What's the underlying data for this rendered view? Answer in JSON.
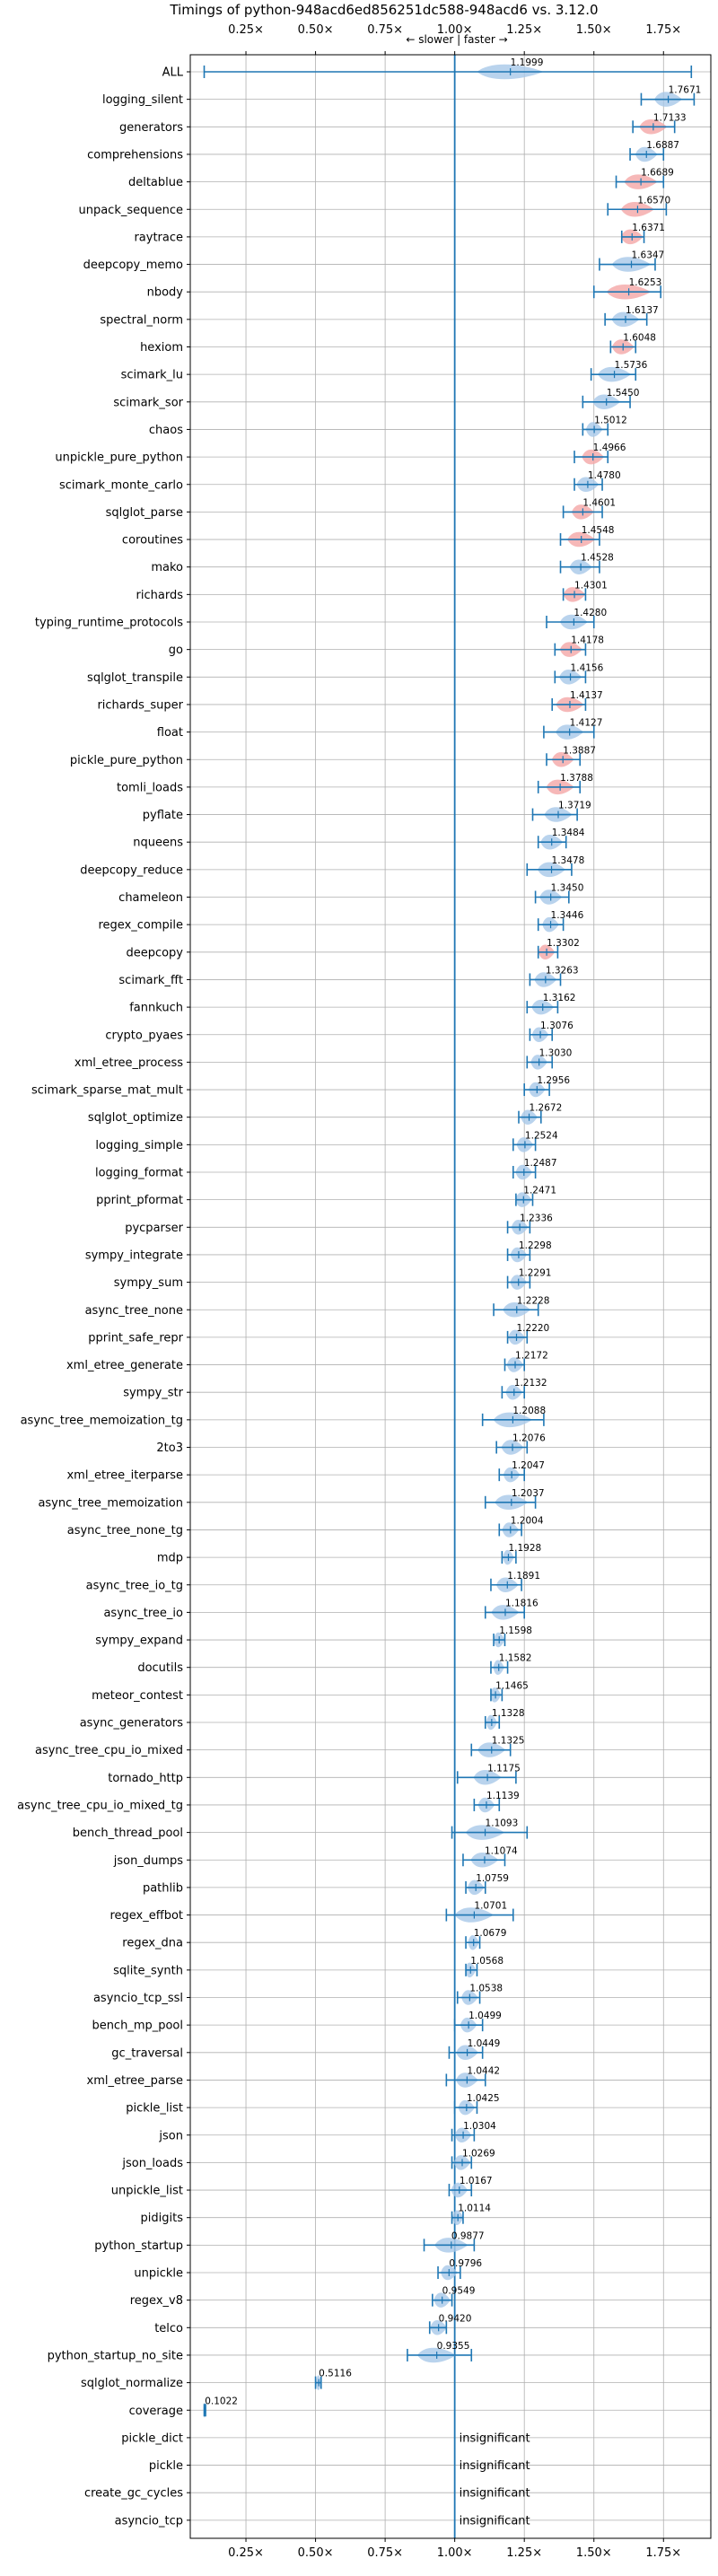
{
  "chart_data": {
    "type": "violin",
    "title": "Timings of python-948acd6ed856251dc588-948acd6 vs. 3.12.0",
    "direction_label": "← slower | faster →",
    "insignificant_label": "insignificant",
    "xlim": [
      0.05,
      1.92
    ],
    "xticks": [
      0.25,
      0.5,
      0.75,
      1.0,
      1.25,
      1.5,
      1.75
    ],
    "xtick_labels": [
      "0.25×",
      "0.50×",
      "0.75×",
      "1.00×",
      "1.25×",
      "1.50×",
      "1.75×"
    ],
    "reference_x": 1.0,
    "grid": true,
    "colors": {
      "faster_violin": "#a8c8e8",
      "significant_violin": "#f4a6a6",
      "whisker": "#1f77b4",
      "reference": "#1f77b4"
    },
    "benchmarks": [
      {
        "name": "ALL",
        "value": 1.1999,
        "label": "1.1999",
        "low": 0.1,
        "high": 1.85,
        "spread": 0.12,
        "highlight": false
      },
      {
        "name": "logging_silent",
        "value": 1.7671,
        "label": "1.7671",
        "low": 1.67,
        "high": 1.86,
        "spread": 0.05,
        "highlight": false
      },
      {
        "name": "generators",
        "value": 1.7133,
        "label": "1.7133",
        "low": 1.64,
        "high": 1.79,
        "spread": 0.05,
        "highlight": true
      },
      {
        "name": "comprehensions",
        "value": 1.6887,
        "label": "1.6887",
        "low": 1.63,
        "high": 1.75,
        "spread": 0.04,
        "highlight": false
      },
      {
        "name": "deltablue",
        "value": 1.6689,
        "label": "1.6689",
        "low": 1.58,
        "high": 1.75,
        "spread": 0.06,
        "highlight": true
      },
      {
        "name": "unpack_sequence",
        "value": 1.657,
        "label": "1.6570",
        "low": 1.55,
        "high": 1.76,
        "spread": 0.06,
        "highlight": true
      },
      {
        "name": "raytrace",
        "value": 1.6371,
        "label": "1.6371",
        "low": 1.6,
        "high": 1.68,
        "spread": 0.04,
        "highlight": true
      },
      {
        "name": "deepcopy_memo",
        "value": 1.6347,
        "label": "1.6347",
        "low": 1.52,
        "high": 1.72,
        "spread": 0.07,
        "highlight": false
      },
      {
        "name": "nbody",
        "value": 1.6253,
        "label": "1.6253",
        "low": 1.5,
        "high": 1.74,
        "spread": 0.08,
        "highlight": true
      },
      {
        "name": "spectral_norm",
        "value": 1.6137,
        "label": "1.6137",
        "low": 1.54,
        "high": 1.69,
        "spread": 0.05,
        "highlight": false
      },
      {
        "name": "hexiom",
        "value": 1.6048,
        "label": "1.6048",
        "low": 1.56,
        "high": 1.65,
        "spread": 0.04,
        "highlight": true
      },
      {
        "name": "scimark_lu",
        "value": 1.5736,
        "label": "1.5736",
        "low": 1.49,
        "high": 1.65,
        "spread": 0.06,
        "highlight": false
      },
      {
        "name": "scimark_sor",
        "value": 1.545,
        "label": "1.5450",
        "low": 1.46,
        "high": 1.63,
        "spread": 0.05,
        "highlight": false
      },
      {
        "name": "chaos",
        "value": 1.5012,
        "label": "1.5012",
        "low": 1.46,
        "high": 1.55,
        "spread": 0.03,
        "highlight": false
      },
      {
        "name": "unpickle_pure_python",
        "value": 1.4966,
        "label": "1.4966",
        "low": 1.43,
        "high": 1.55,
        "spread": 0.04,
        "highlight": true
      },
      {
        "name": "scimark_monte_carlo",
        "value": 1.478,
        "label": "1.4780",
        "low": 1.43,
        "high": 1.53,
        "spread": 0.04,
        "highlight": false
      },
      {
        "name": "sqlglot_parse",
        "value": 1.4601,
        "label": "1.4601",
        "low": 1.39,
        "high": 1.53,
        "spread": 0.04,
        "highlight": true
      },
      {
        "name": "coroutines",
        "value": 1.4548,
        "label": "1.4548",
        "low": 1.38,
        "high": 1.52,
        "spread": 0.05,
        "highlight": true
      },
      {
        "name": "mako",
        "value": 1.4528,
        "label": "1.4528",
        "low": 1.38,
        "high": 1.52,
        "spread": 0.04,
        "highlight": false
      },
      {
        "name": "richards",
        "value": 1.4301,
        "label": "1.4301",
        "low": 1.39,
        "high": 1.47,
        "spread": 0.04,
        "highlight": true
      },
      {
        "name": "typing_runtime_protocols",
        "value": 1.428,
        "label": "1.4280",
        "low": 1.33,
        "high": 1.5,
        "spread": 0.05,
        "highlight": false
      },
      {
        "name": "go",
        "value": 1.4178,
        "label": "1.4178",
        "low": 1.36,
        "high": 1.47,
        "spread": 0.04,
        "highlight": true
      },
      {
        "name": "sqlglot_transpile",
        "value": 1.4156,
        "label": "1.4156",
        "low": 1.36,
        "high": 1.47,
        "spread": 0.04,
        "highlight": false
      },
      {
        "name": "richards_super",
        "value": 1.4137,
        "label": "1.4137",
        "low": 1.35,
        "high": 1.47,
        "spread": 0.05,
        "highlight": true
      },
      {
        "name": "float",
        "value": 1.4127,
        "label": "1.4127",
        "low": 1.32,
        "high": 1.5,
        "spread": 0.05,
        "highlight": false
      },
      {
        "name": "pickle_pure_python",
        "value": 1.3887,
        "label": "1.3887",
        "low": 1.33,
        "high": 1.45,
        "spread": 0.04,
        "highlight": true
      },
      {
        "name": "tomli_loads",
        "value": 1.3788,
        "label": "1.3788",
        "low": 1.3,
        "high": 1.45,
        "spread": 0.05,
        "highlight": true
      },
      {
        "name": "pyflate",
        "value": 1.3719,
        "label": "1.3719",
        "low": 1.28,
        "high": 1.44,
        "spread": 0.05,
        "highlight": false
      },
      {
        "name": "nqueens",
        "value": 1.3484,
        "label": "1.3484",
        "low": 1.3,
        "high": 1.4,
        "spread": 0.04,
        "highlight": false
      },
      {
        "name": "deepcopy_reduce",
        "value": 1.3478,
        "label": "1.3478",
        "low": 1.26,
        "high": 1.42,
        "spread": 0.05,
        "highlight": false
      },
      {
        "name": "chameleon",
        "value": 1.345,
        "label": "1.3450",
        "low": 1.29,
        "high": 1.41,
        "spread": 0.04,
        "highlight": false
      },
      {
        "name": "regex_compile",
        "value": 1.3446,
        "label": "1.3446",
        "low": 1.3,
        "high": 1.39,
        "spread": 0.03,
        "highlight": false
      },
      {
        "name": "deepcopy",
        "value": 1.3302,
        "label": "1.3302",
        "low": 1.3,
        "high": 1.37,
        "spread": 0.03,
        "highlight": true
      },
      {
        "name": "scimark_fft",
        "value": 1.3263,
        "label": "1.3263",
        "low": 1.27,
        "high": 1.38,
        "spread": 0.04,
        "highlight": false
      },
      {
        "name": "fannkuch",
        "value": 1.3162,
        "label": "1.3162",
        "low": 1.26,
        "high": 1.37,
        "spread": 0.04,
        "highlight": false
      },
      {
        "name": "crypto_pyaes",
        "value": 1.3076,
        "label": "1.3076",
        "low": 1.27,
        "high": 1.35,
        "spread": 0.03,
        "highlight": false
      },
      {
        "name": "xml_etree_process",
        "value": 1.303,
        "label": "1.3030",
        "low": 1.26,
        "high": 1.35,
        "spread": 0.03,
        "highlight": false
      },
      {
        "name": "scimark_sparse_mat_mult",
        "value": 1.2956,
        "label": "1.2956",
        "low": 1.25,
        "high": 1.34,
        "spread": 0.03,
        "highlight": false
      },
      {
        "name": "sqlglot_optimize",
        "value": 1.2672,
        "label": "1.2672",
        "low": 1.23,
        "high": 1.31,
        "spread": 0.03,
        "highlight": false
      },
      {
        "name": "logging_simple",
        "value": 1.2524,
        "label": "1.2524",
        "low": 1.21,
        "high": 1.29,
        "spread": 0.03,
        "highlight": false
      },
      {
        "name": "logging_format",
        "value": 1.2487,
        "label": "1.2487",
        "low": 1.21,
        "high": 1.29,
        "spread": 0.03,
        "highlight": false
      },
      {
        "name": "pprint_pformat",
        "value": 1.2471,
        "label": "1.2471",
        "low": 1.22,
        "high": 1.28,
        "spread": 0.03,
        "highlight": false
      },
      {
        "name": "pycparser",
        "value": 1.2336,
        "label": "1.2336",
        "low": 1.19,
        "high": 1.27,
        "spread": 0.03,
        "highlight": false
      },
      {
        "name": "sympy_integrate",
        "value": 1.2298,
        "label": "1.2298",
        "low": 1.19,
        "high": 1.27,
        "spread": 0.03,
        "highlight": false
      },
      {
        "name": "sympy_sum",
        "value": 1.2291,
        "label": "1.2291",
        "low": 1.19,
        "high": 1.27,
        "spread": 0.03,
        "highlight": false
      },
      {
        "name": "async_tree_none",
        "value": 1.2228,
        "label": "1.2228",
        "low": 1.14,
        "high": 1.3,
        "spread": 0.05,
        "highlight": false
      },
      {
        "name": "pprint_safe_repr",
        "value": 1.222,
        "label": "1.2220",
        "low": 1.19,
        "high": 1.26,
        "spread": 0.03,
        "highlight": false
      },
      {
        "name": "xml_etree_generate",
        "value": 1.2172,
        "label": "1.2172",
        "low": 1.18,
        "high": 1.25,
        "spread": 0.03,
        "highlight": false
      },
      {
        "name": "sympy_str",
        "value": 1.2132,
        "label": "1.2132",
        "low": 1.17,
        "high": 1.25,
        "spread": 0.03,
        "highlight": false
      },
      {
        "name": "async_tree_memoization_tg",
        "value": 1.2088,
        "label": "1.2088",
        "low": 1.1,
        "high": 1.32,
        "spread": 0.07,
        "highlight": false
      },
      {
        "name": "2to3",
        "value": 1.2076,
        "label": "1.2076",
        "low": 1.15,
        "high": 1.26,
        "spread": 0.04,
        "highlight": false
      },
      {
        "name": "xml_etree_iterparse",
        "value": 1.2047,
        "label": "1.2047",
        "low": 1.16,
        "high": 1.25,
        "spread": 0.03,
        "highlight": false
      },
      {
        "name": "async_tree_memoization",
        "value": 1.2037,
        "label": "1.2037",
        "low": 1.11,
        "high": 1.29,
        "spread": 0.06,
        "highlight": false
      },
      {
        "name": "async_tree_none_tg",
        "value": 1.2004,
        "label": "1.2004",
        "low": 1.16,
        "high": 1.24,
        "spread": 0.03,
        "highlight": false
      },
      {
        "name": "mdp",
        "value": 1.1928,
        "label": "1.1928",
        "low": 1.17,
        "high": 1.22,
        "spread": 0.02,
        "highlight": false
      },
      {
        "name": "async_tree_io_tg",
        "value": 1.1891,
        "label": "1.1891",
        "low": 1.13,
        "high": 1.24,
        "spread": 0.04,
        "highlight": false
      },
      {
        "name": "async_tree_io",
        "value": 1.1816,
        "label": "1.1816",
        "low": 1.11,
        "high": 1.25,
        "spread": 0.05,
        "highlight": false
      },
      {
        "name": "sympy_expand",
        "value": 1.1598,
        "label": "1.1598",
        "low": 1.14,
        "high": 1.18,
        "spread": 0.02,
        "highlight": false
      },
      {
        "name": "docutils",
        "value": 1.1582,
        "label": "1.1582",
        "low": 1.13,
        "high": 1.19,
        "spread": 0.02,
        "highlight": false
      },
      {
        "name": "meteor_contest",
        "value": 1.1465,
        "label": "1.1465",
        "low": 1.13,
        "high": 1.17,
        "spread": 0.02,
        "highlight": false
      },
      {
        "name": "async_generators",
        "value": 1.1328,
        "label": "1.1328",
        "low": 1.11,
        "high": 1.16,
        "spread": 0.02,
        "highlight": false
      },
      {
        "name": "async_tree_cpu_io_mixed",
        "value": 1.1325,
        "label": "1.1325",
        "low": 1.06,
        "high": 1.2,
        "spread": 0.05,
        "highlight": false
      },
      {
        "name": "tornado_http",
        "value": 1.1175,
        "label": "1.1175",
        "low": 1.01,
        "high": 1.22,
        "spread": 0.05,
        "highlight": false
      },
      {
        "name": "async_tree_cpu_io_mixed_tg",
        "value": 1.1139,
        "label": "1.1139",
        "low": 1.07,
        "high": 1.16,
        "spread": 0.03,
        "highlight": false
      },
      {
        "name": "bench_thread_pool",
        "value": 1.1093,
        "label": "1.1093",
        "low": 0.99,
        "high": 1.26,
        "spread": 0.07,
        "highlight": false
      },
      {
        "name": "json_dumps",
        "value": 1.1074,
        "label": "1.1074",
        "low": 1.03,
        "high": 1.18,
        "spread": 0.05,
        "highlight": false
      },
      {
        "name": "pathlib",
        "value": 1.0759,
        "label": "1.0759",
        "low": 1.04,
        "high": 1.11,
        "spread": 0.03,
        "highlight": false
      },
      {
        "name": "regex_effbot",
        "value": 1.0701,
        "label": "1.0701",
        "low": 0.97,
        "high": 1.21,
        "spread": 0.07,
        "highlight": false
      },
      {
        "name": "regex_dna",
        "value": 1.0679,
        "label": "1.0679",
        "low": 1.04,
        "high": 1.09,
        "spread": 0.02,
        "highlight": false
      },
      {
        "name": "sqlite_synth",
        "value": 1.0568,
        "label": "1.0568",
        "low": 1.04,
        "high": 1.08,
        "spread": 0.02,
        "highlight": false
      },
      {
        "name": "asyncio_tcp_ssl",
        "value": 1.0538,
        "label": "1.0538",
        "low": 1.01,
        "high": 1.09,
        "spread": 0.03,
        "highlight": false
      },
      {
        "name": "bench_mp_pool",
        "value": 1.0499,
        "label": "1.0499",
        "low": 1.0,
        "high": 1.1,
        "spread": 0.03,
        "highlight": false
      },
      {
        "name": "gc_traversal",
        "value": 1.0449,
        "label": "1.0449",
        "low": 0.98,
        "high": 1.1,
        "spread": 0.04,
        "highlight": false
      },
      {
        "name": "xml_etree_parse",
        "value": 1.0442,
        "label": "1.0442",
        "low": 0.97,
        "high": 1.11,
        "spread": 0.04,
        "highlight": false
      },
      {
        "name": "pickle_list",
        "value": 1.0425,
        "label": "1.0425",
        "low": 1.0,
        "high": 1.08,
        "spread": 0.03,
        "highlight": false
      },
      {
        "name": "json",
        "value": 1.0304,
        "label": "1.0304",
        "low": 0.99,
        "high": 1.07,
        "spread": 0.03,
        "highlight": false
      },
      {
        "name": "json_loads",
        "value": 1.0269,
        "label": "1.0269",
        "low": 0.99,
        "high": 1.06,
        "spread": 0.03,
        "highlight": false
      },
      {
        "name": "unpickle_list",
        "value": 1.0167,
        "label": "1.0167",
        "low": 0.98,
        "high": 1.06,
        "spread": 0.03,
        "highlight": false
      },
      {
        "name": "pidigits",
        "value": 1.0114,
        "label": "1.0114",
        "low": 0.99,
        "high": 1.03,
        "spread": 0.02,
        "highlight": false
      },
      {
        "name": "python_startup",
        "value": 0.9877,
        "label": "0.9877",
        "low": 0.89,
        "high": 1.07,
        "spread": 0.06,
        "highlight": false
      },
      {
        "name": "unpickle",
        "value": 0.9796,
        "label": "0.9796",
        "low": 0.94,
        "high": 1.02,
        "spread": 0.03,
        "highlight": false
      },
      {
        "name": "regex_v8",
        "value": 0.9549,
        "label": "0.9549",
        "low": 0.92,
        "high": 0.99,
        "spread": 0.03,
        "highlight": false
      },
      {
        "name": "telco",
        "value": 0.942,
        "label": "0.9420",
        "low": 0.91,
        "high": 0.97,
        "spread": 0.03,
        "highlight": false
      },
      {
        "name": "python_startup_no_site",
        "value": 0.9355,
        "label": "0.9355",
        "low": 0.83,
        "high": 1.06,
        "spread": 0.07,
        "highlight": false
      },
      {
        "name": "sqlglot_normalize",
        "value": 0.5116,
        "label": "0.5116",
        "low": 0.5,
        "high": 0.52,
        "spread": 0.01,
        "highlight": false
      },
      {
        "name": "coverage",
        "value": 0.1022,
        "label": "0.1022",
        "low": 0.1,
        "high": 0.105,
        "spread": 0.005,
        "highlight": false
      },
      {
        "name": "pickle_dict",
        "value": null,
        "label": null,
        "insignificant": true
      },
      {
        "name": "pickle",
        "value": null,
        "label": null,
        "insignificant": true
      },
      {
        "name": "create_gc_cycles",
        "value": null,
        "label": null,
        "insignificant": true
      },
      {
        "name": "asyncio_tcp",
        "value": null,
        "label": null,
        "insignificant": true
      }
    ]
  }
}
